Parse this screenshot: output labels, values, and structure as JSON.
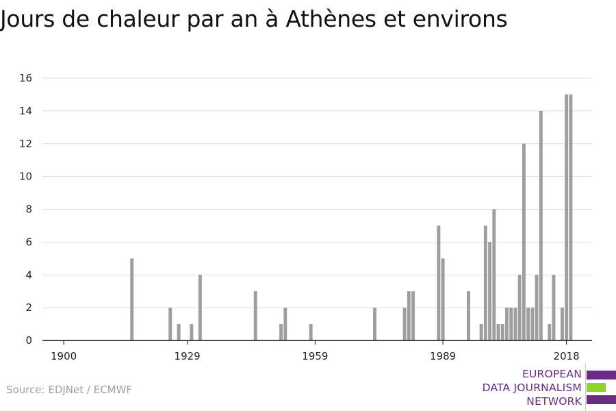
{
  "chart_data": {
    "type": "bar",
    "title": "Jours de chaleur par an à Athènes et environs",
    "xlabel": "",
    "ylabel": "",
    "xlim": [
      1895,
      2024
    ],
    "ylim": [
      0,
      16
    ],
    "x_ticks": [
      "1900",
      "1929",
      "1959",
      "1989",
      "2018"
    ],
    "x_tick_values": [
      1900,
      1929,
      1959,
      1989,
      2018
    ],
    "y_ticks": [
      0,
      2,
      4,
      6,
      8,
      10,
      12,
      14,
      16
    ],
    "grid": "horizontal",
    "bar_color": "#9e9e9e",
    "series": [
      {
        "x": [
          1916,
          1925,
          1927,
          1930,
          1932,
          1945,
          1951,
          1952,
          1958,
          1973,
          1980,
          1981,
          1982,
          1988,
          1989,
          1995,
          1998,
          1999,
          2000,
          2001,
          2002,
          2003,
          2004,
          2005,
          2006,
          2007,
          2008,
          2009,
          2010,
          2011,
          2012,
          2014,
          2015,
          2017,
          2018,
          2019
        ],
        "values": [
          5,
          2,
          1,
          1,
          4,
          3,
          1,
          2,
          1,
          2,
          2,
          3,
          3,
          7,
          5,
          3,
          1,
          7,
          6,
          8,
          1,
          1,
          2,
          2,
          2,
          4,
          12,
          2,
          2,
          4,
          14,
          1,
          4,
          2,
          15,
          15
        ]
      }
    ]
  },
  "source": "Source: EDJNet / ECMWF",
  "logo": {
    "lines": [
      "EUROPEAN",
      "DATA JOURNALISM",
      "NETWORK"
    ],
    "colors": {
      "purple": "#6a2a86",
      "green": "#8fd22a"
    }
  }
}
